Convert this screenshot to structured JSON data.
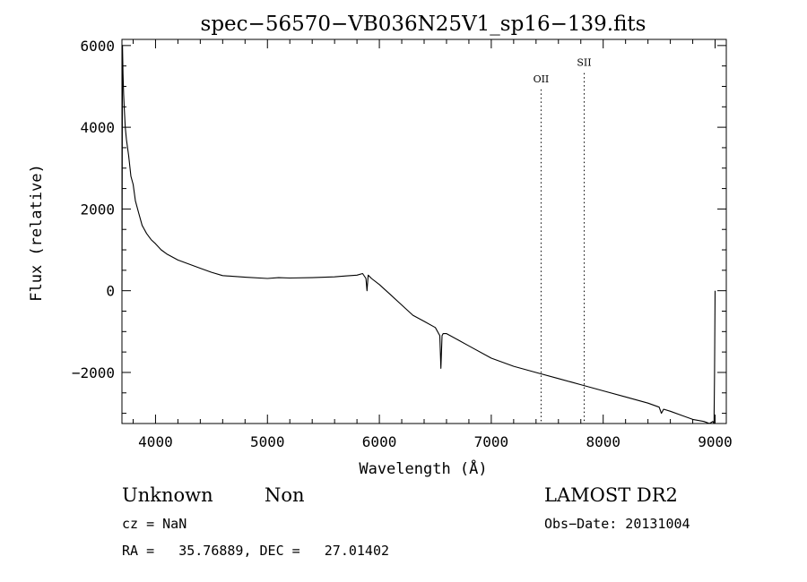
{
  "chart_data": {
    "type": "line",
    "title": "spec−56570−VB036N25V1_sp16−139.fits",
    "xlabel": "Wavelength (Å)",
    "ylabel": "Flux (relative)",
    "xlim": [
      3700,
      9100
    ],
    "ylim": [
      -3250,
      6150
    ],
    "xticks": [
      4000,
      5000,
      6000,
      7000,
      8000,
      9000
    ],
    "yticks": [
      -2000,
      0,
      2000,
      4000,
      6000
    ],
    "ytick_labels": [
      "−2000",
      "0",
      "2000",
      "4000",
      "6000"
    ],
    "grid": false,
    "series": [
      {
        "x": [
          3700,
          3705,
          3710,
          3715,
          3720,
          3730,
          3740,
          3760,
          3780,
          3800,
          3820,
          3850,
          3880,
          3920,
          3960,
          4000,
          4050,
          4100,
          4200,
          4300,
          4400,
          4500,
          4600,
          4800,
          5000,
          5100,
          5200,
          5400,
          5600,
          5700,
          5800,
          5850,
          5880,
          5890,
          5900,
          5930,
          6000,
          6100,
          6200,
          6300,
          6400,
          6500,
          6540,
          6550,
          6560,
          6570,
          6600,
          6700,
          6800,
          7000,
          7200,
          7400,
          7600,
          7800,
          8000,
          8200,
          8400,
          8500,
          8520,
          8540,
          8600,
          8700,
          8800,
          8900,
          8950,
          8980,
          8990,
          8995,
          9000
        ],
        "y": [
          0,
          6000,
          5300,
          4800,
          4500,
          4000,
          3700,
          3300,
          2800,
          2600,
          2200,
          1900,
          1600,
          1400,
          1250,
          1150,
          1000,
          900,
          750,
          650,
          550,
          450,
          370,
          330,
          300,
          320,
          310,
          320,
          340,
          360,
          380,
          420,
          300,
          0,
          380,
          300,
          150,
          -100,
          -350,
          -600,
          -750,
          -900,
          -1100,
          -1900,
          -1100,
          -1050,
          -1050,
          -1200,
          -1350,
          -1650,
          -1850,
          -2000,
          -2150,
          -2300,
          -2450,
          -2600,
          -2750,
          -2850,
          -3000,
          -2900,
          -2950,
          -3050,
          -3150,
          -3200,
          -3250,
          -3200,
          -3250,
          -2000,
          0
        ]
      }
    ],
    "annotations": [
      {
        "label": "OII",
        "x": 7445,
        "label_y": 5100
      },
      {
        "label": "SII",
        "x": 7830,
        "label_y": 5500
      }
    ]
  },
  "info": {
    "class_left": "Unknown",
    "class_right": "Non",
    "survey": "LAMOST DR2",
    "cz": "cz = NaN",
    "obs_date": "Obs−Date: 20131004",
    "coords": "RA =   35.76889, DEC =   27.01402"
  }
}
